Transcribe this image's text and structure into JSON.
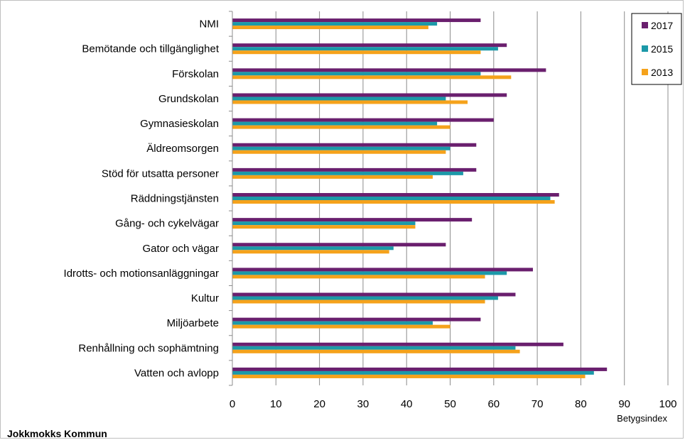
{
  "footer": {
    "text": "Jokkmokks Kommun"
  },
  "chart_data": {
    "type": "bar",
    "orientation": "horizontal",
    "categories": [
      "NMI",
      "Bemötande och tillgänglighet",
      "Förskolan",
      "Grundskolan",
      "Gymnasieskolan",
      "Äldreomsorgen",
      "Stöd för utsatta personer",
      "Räddningstjänsten",
      "Gång- och cykelvägar",
      "Gator och vägar",
      "Idrotts- och motionsanläggningar",
      "Kultur",
      "Miljöarbete",
      "Renhållning och sophämtning",
      "Vatten och avlopp"
    ],
    "series": [
      {
        "name": "2017",
        "color": "#6a1f6e",
        "values": [
          57,
          63,
          72,
          63,
          60,
          56,
          56,
          75,
          55,
          49,
          69,
          65,
          57,
          76,
          86
        ]
      },
      {
        "name": "2015",
        "color": "#1c99a8",
        "values": [
          47,
          61,
          57,
          49,
          47,
          50,
          53,
          73,
          42,
          37,
          63,
          61,
          46,
          65,
          83
        ]
      },
      {
        "name": "2013",
        "color": "#f5a21b",
        "values": [
          45,
          57,
          64,
          54,
          50,
          49,
          46,
          74,
          42,
          36,
          58,
          58,
          50,
          66,
          81
        ]
      }
    ],
    "xlim": [
      0,
      100
    ],
    "xticks": [
      "0",
      "10",
      "20",
      "30",
      "40",
      "50",
      "60",
      "70",
      "80",
      "90",
      "100"
    ],
    "xlabel": "Betygsindex",
    "grid": true,
    "legend": "top-right"
  }
}
